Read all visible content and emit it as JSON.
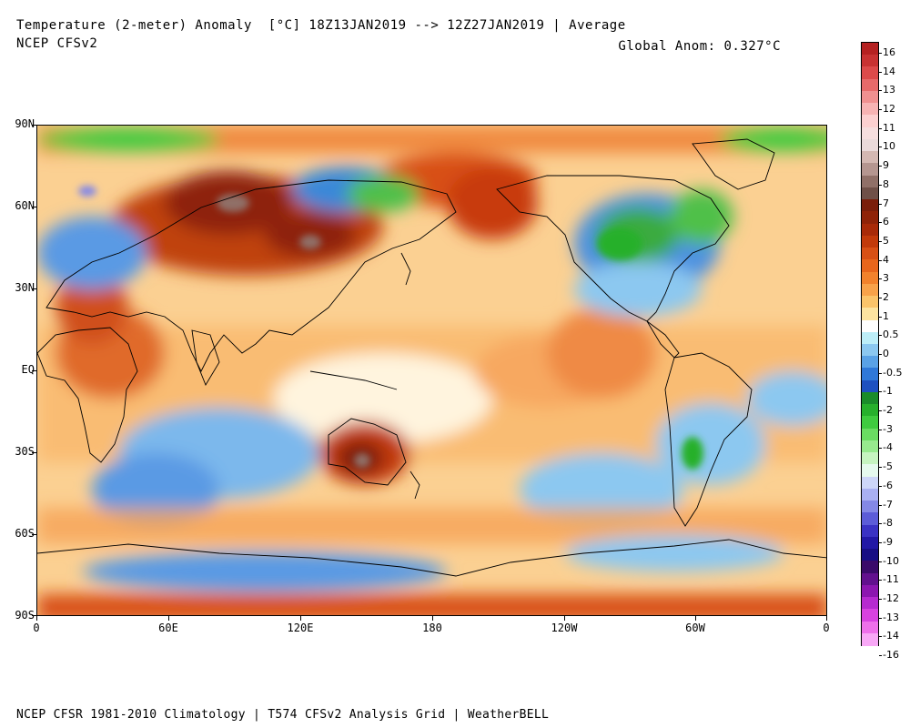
{
  "header": {
    "title": "Temperature (2-meter) Anomaly  [°C] 18Z13JAN2019 --> 12Z27JAN2019 | Average",
    "subtitle": "NCEP CFSv2",
    "global_anom": "Global Anom: 0.327°C"
  },
  "footer": "NCEP CFSR 1981-2010 Climatology | T574 CFSv2 Analysis Grid | WeatherBELL",
  "map": {
    "lat_labels": [
      "90N",
      "60N",
      "30N",
      "EQ",
      "30S",
      "60S",
      "90S"
    ],
    "lon_labels": [
      "0",
      "60E",
      "120E",
      "180",
      "120W",
      "60W",
      "0"
    ]
  },
  "colorbar": {
    "labels": [
      "16",
      "14",
      "13",
      "12",
      "11",
      "10",
      "9",
      "8",
      "7",
      "6",
      "5",
      "4",
      "3",
      "2",
      "1",
      "0.5",
      "0",
      "-0.5",
      "-1",
      "-2",
      "-3",
      "-4",
      "-5",
      "-6",
      "-7",
      "-8",
      "-9",
      "-10",
      "-11",
      "-12",
      "-13",
      "-14",
      "-16"
    ],
    "colors": [
      "#b52121",
      "#c83232",
      "#dc4a4a",
      "#e66a6a",
      "#f09090",
      "#f7b3b3",
      "#fcd0d0",
      "#f6dede",
      "#eadada",
      "#d4b8b2",
      "#b59690",
      "#907068",
      "#6f5048",
      "#7a1e0a",
      "#8f2308",
      "#a82a08",
      "#c23a0a",
      "#d85015",
      "#e8661c",
      "#f2822c",
      "#f8a24a",
      "#fbc46a",
      "#fde4a0",
      "#ffffff",
      "#bdeef8",
      "#8cc8f0",
      "#5aa2e6",
      "#2f78d8",
      "#1e50c0",
      "#1a8c2a",
      "#27b02c",
      "#3fcb3f",
      "#6adc62",
      "#97ea8e",
      "#c6f4c0",
      "#e6faee",
      "#cdd6f8",
      "#a9b0f2",
      "#8488e6",
      "#5c5cd8",
      "#3a32c4",
      "#2218a6",
      "#170e84",
      "#3a0a6a",
      "#62108e",
      "#8c16b0",
      "#b62ad0",
      "#d842e0",
      "#ee70ea",
      "#f8a8f6"
    ]
  }
}
